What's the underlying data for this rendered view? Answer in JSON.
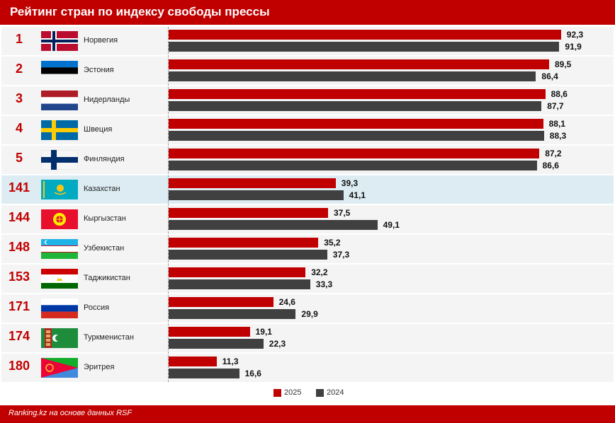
{
  "header": {
    "title": "Рейтинг стран по индексу свободы прессы"
  },
  "footer": {
    "source": "Ranking.kz на основе данных RSF"
  },
  "colors": {
    "accent": "#c00000",
    "series_2025": "#c00000",
    "series_2024": "#404040",
    "highlight_row": "#dcecf2",
    "row_bg": "#f4f4f4"
  },
  "chart_data": {
    "type": "bar",
    "orientation": "horizontal",
    "title": "Рейтинг стран по индексу свободы прессы",
    "xlim": [
      0,
      100
    ],
    "highlighted": "Казахстан",
    "categories": [
      "Норвегия",
      "Эстония",
      "Нидерланды",
      "Швеция",
      "Финляндия",
      "Казахстан",
      "Кыргызстан",
      "Узбекистан",
      "Таджикистан",
      "Россия",
      "Туркменистан",
      "Эритрея"
    ],
    "ranks": [
      "1",
      "2",
      "3",
      "4",
      "5",
      "141",
      "144",
      "148",
      "153",
      "171",
      "174",
      "180"
    ],
    "flags": [
      "norway-flag-icon",
      "estonia-flag-icon",
      "netherlands-flag-icon",
      "sweden-flag-icon",
      "finland-flag-icon",
      "kazakhstan-flag-icon",
      "kyrgyzstan-flag-icon",
      "uzbekistan-flag-icon",
      "tajikistan-flag-icon",
      "russia-flag-icon",
      "turkmenistan-flag-icon",
      "eritrea-flag-icon"
    ],
    "series": [
      {
        "name": "2025",
        "values": [
          92.3,
          89.5,
          88.6,
          88.1,
          87.2,
          39.3,
          37.5,
          35.2,
          32.2,
          24.6,
          19.1,
          11.3
        ],
        "labels": [
          "92,3",
          "89,5",
          "88,6",
          "88,1",
          "87,2",
          "39,3",
          "37,5",
          "35,2",
          "32,2",
          "24,6",
          "19,1",
          "11,3"
        ]
      },
      {
        "name": "2024",
        "values": [
          91.9,
          86.4,
          87.7,
          88.3,
          86.6,
          41.1,
          49.1,
          37.3,
          33.3,
          29.9,
          22.3,
          16.6
        ],
        "labels": [
          "91,9",
          "86,4",
          "87,7",
          "88,3",
          "86,6",
          "41,1",
          "49,1",
          "37,3",
          "33,3",
          "29,9",
          "22,3",
          "16,6"
        ]
      }
    ],
    "legend": {
      "position": "bottom-center",
      "entries": [
        "2025",
        "2024"
      ]
    }
  }
}
